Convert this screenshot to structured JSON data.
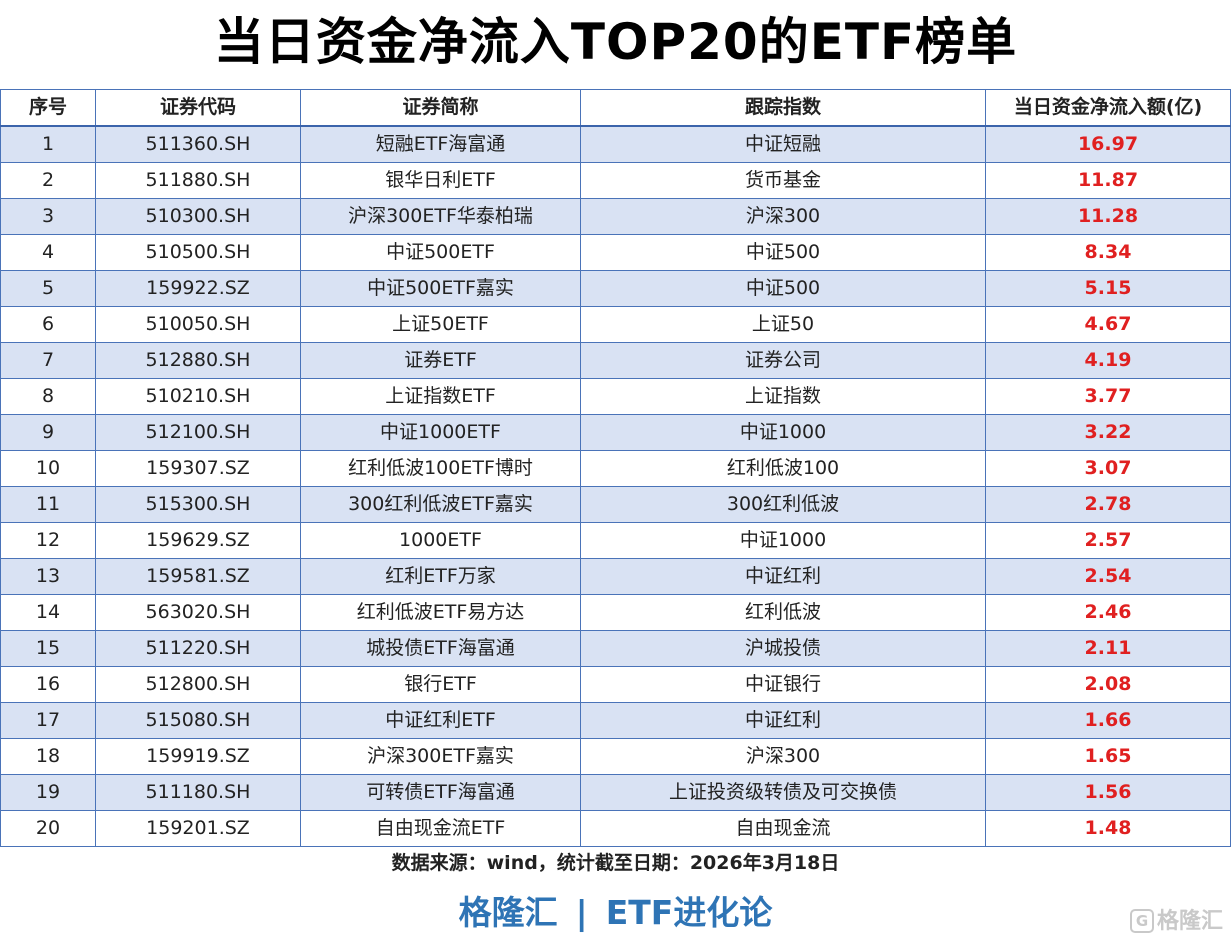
{
  "title": "当日资金净流入TOP20的ETF榜单",
  "columns": [
    "序号",
    "证券代码",
    "证券简称",
    "跟踪指数",
    "当日资金净流入额(亿)"
  ],
  "rows": [
    [
      "1",
      "511360.SH",
      "短融ETF海富通",
      "中证短融",
      "16.97"
    ],
    [
      "2",
      "511880.SH",
      "银华日利ETF",
      "货币基金",
      "11.87"
    ],
    [
      "3",
      "510300.SH",
      "沪深300ETF华泰柏瑞",
      "沪深300",
      "11.28"
    ],
    [
      "4",
      "510500.SH",
      "中证500ETF",
      "中证500",
      "8.34"
    ],
    [
      "5",
      "159922.SZ",
      "中证500ETF嘉实",
      "中证500",
      "5.15"
    ],
    [
      "6",
      "510050.SH",
      "上证50ETF",
      "上证50",
      "4.67"
    ],
    [
      "7",
      "512880.SH",
      "证券ETF",
      "证券公司",
      "4.19"
    ],
    [
      "8",
      "510210.SH",
      "上证指数ETF",
      "上证指数",
      "3.77"
    ],
    [
      "9",
      "512100.SH",
      "中证1000ETF",
      "中证1000",
      "3.22"
    ],
    [
      "10",
      "159307.SZ",
      "红利低波100ETF博时",
      "红利低波100",
      "3.07"
    ],
    [
      "11",
      "515300.SH",
      "300红利低波ETF嘉实",
      "300红利低波",
      "2.78"
    ],
    [
      "12",
      "159629.SZ",
      "1000ETF",
      "中证1000",
      "2.57"
    ],
    [
      "13",
      "159581.SZ",
      "红利ETF万家",
      "中证红利",
      "2.54"
    ],
    [
      "14",
      "563020.SH",
      "红利低波ETF易方达",
      "红利低波",
      "2.46"
    ],
    [
      "15",
      "511220.SH",
      "城投债ETF海富通",
      "沪城投债",
      "2.11"
    ],
    [
      "16",
      "512800.SH",
      "银行ETF",
      "中证银行",
      "2.08"
    ],
    [
      "17",
      "515080.SH",
      "中证红利ETF",
      "中证红利",
      "1.66"
    ],
    [
      "18",
      "159919.SZ",
      "沪深300ETF嘉实",
      "沪深300",
      "1.65"
    ],
    [
      "19",
      "511180.SH",
      "可转债ETF海富通",
      "上证投资级转债及可交换债",
      "1.56"
    ],
    [
      "20",
      "159201.SZ",
      "自由现金流ETF",
      "自由现金流",
      "1.48"
    ]
  ],
  "footnote": "数据来源：wind，统计截至日期：2026年3月18日",
  "brand": {
    "left": "格隆汇",
    "separator": "|",
    "right": "ETF进化论"
  },
  "watermark": {
    "icon_letter": "G",
    "text": "格隆汇"
  },
  "colors": {
    "header_border": "#4a73b8",
    "row_stripe": "#d9e2f3",
    "amount": "#e02020",
    "brand": "#2e74b5"
  }
}
